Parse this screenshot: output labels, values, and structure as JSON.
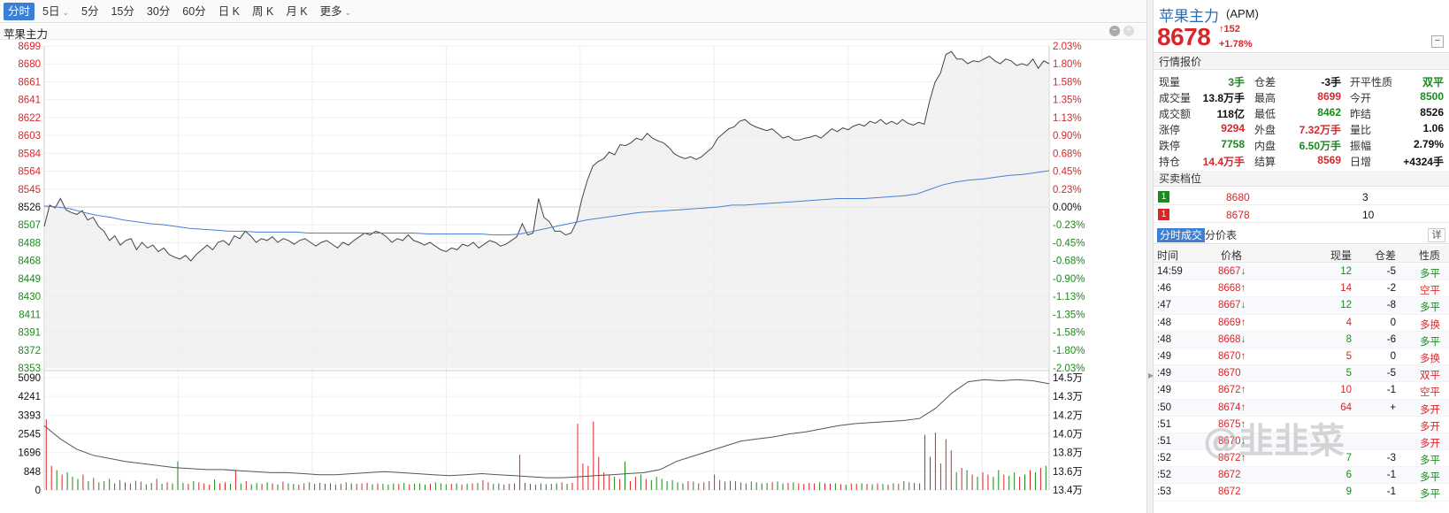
{
  "toolbar": {
    "tabs": [
      "分时",
      "5日",
      "5分",
      "15分",
      "30分",
      "60分",
      "日 K",
      "周 K",
      "月 K",
      "更多"
    ],
    "active": "分时"
  },
  "chart_title": "苹果主力",
  "colors": {
    "up": "#d8262a",
    "down": "#1a8a1a",
    "avg": "#4a7fd4",
    "price": "#444444",
    "accent": "#3d7fd6"
  },
  "chart_data": [
    {
      "type": "line",
      "title": "",
      "price_axis": {
        "ticks_up": [
          "8699",
          "8680",
          "8661",
          "8641",
          "8622",
          "8603",
          "8584",
          "8564",
          "8545"
        ],
        "base": "8526",
        "ticks_down": [
          "8507",
          "8488",
          "8468",
          "8449",
          "8430",
          "8411",
          "8391",
          "8372",
          "8353"
        ],
        "ylim": [
          8353,
          8699
        ]
      },
      "pct_axis": {
        "ticks_up": [
          "2.03%",
          "1.80%",
          "1.58%",
          "1.35%",
          "1.13%",
          "0.90%",
          "0.68%",
          "0.45%",
          "0.23%"
        ],
        "base": "0.00%",
        "ticks_down": [
          "-0.23%",
          "-0.45%",
          "-0.68%",
          "-0.90%",
          "-1.13%",
          "-1.35%",
          "-1.58%",
          "-1.80%",
          "-2.03%"
        ]
      },
      "series": [
        {
          "values": [
            8505,
            8528,
            8525,
            8535,
            8523,
            8520,
            8518,
            8522,
            8512,
            8515,
            8505,
            8500,
            8490,
            8495,
            8485,
            8490,
            8492,
            8480,
            8488,
            8482,
            8485,
            8478,
            8482,
            8475,
            8472,
            8470,
            8474,
            8468,
            8475,
            8480,
            8485,
            8480,
            8488,
            8490,
            8485,
            8495,
            8492,
            8500,
            8495,
            8488,
            8492,
            8490,
            8494,
            8488,
            8492,
            8490,
            8486,
            8490,
            8492,
            8488,
            8484,
            8488,
            8490,
            8486,
            8482,
            8488,
            8485,
            8490,
            8494,
            8498,
            8496,
            8500,
            8498,
            8494,
            8488,
            8492,
            8490,
            8496,
            8490,
            8488,
            8485,
            8488,
            8484,
            8480,
            8478,
            8482,
            8480,
            8486,
            8484,
            8488,
            8482,
            8486,
            8490,
            8488,
            8484,
            8486,
            8490,
            8494,
            8508,
            8496,
            8498,
            8535,
            8515,
            8510,
            8500,
            8500,
            8496,
            8498,
            8510,
            8535,
            8555,
            8570,
            8575,
            8578,
            8585,
            8582,
            8593,
            8592,
            8595,
            8600,
            8598,
            8605,
            8600,
            8597,
            8595,
            8590,
            8583,
            8580,
            8578,
            8580,
            8577,
            8580,
            8585,
            8590,
            8600,
            8605,
            8610,
            8612,
            8618,
            8620,
            8615,
            8612,
            8610,
            8608,
            8610,
            8605,
            8600,
            8602,
            8598,
            8598,
            8600,
            8601,
            8603,
            8600,
            8605,
            8610,
            8607,
            8611,
            8609,
            8613,
            8615,
            8613,
            8618,
            8616,
            8620,
            8615,
            8618,
            8615,
            8620,
            8616,
            8614,
            8617,
            8615,
            8640,
            8660,
            8670,
            8690,
            8693,
            8685,
            8685,
            8680,
            8683,
            8682,
            8685,
            8688,
            8683,
            8680,
            8685,
            8683,
            8678,
            8680,
            8678,
            8685,
            8675,
            8683,
            8680
          ],
          "name": ""
        },
        {
          "values": [
            8527,
            8526,
            8524,
            8520,
            8517,
            8515,
            8512,
            8510,
            8508,
            8507,
            8505,
            8503,
            8502,
            8501,
            8500,
            8500,
            8499,
            8499,
            8499,
            8499,
            8498,
            8498,
            8498,
            8498,
            8498,
            8498,
            8498,
            8498,
            8498,
            8497,
            8497,
            8497,
            8497,
            8497,
            8496,
            8496,
            8497,
            8500,
            8503,
            8506,
            8509,
            8512,
            8514,
            8516,
            8518,
            8520,
            8521,
            8522,
            8523,
            8524,
            8525,
            8526,
            8528,
            8528,
            8529,
            8530,
            8531,
            8532,
            8533,
            8534,
            8535,
            8535,
            8535,
            8536,
            8537,
            8538,
            8540,
            8545,
            8550,
            8553,
            8555,
            8556,
            8558,
            8560,
            8561,
            8563,
            8565
          ],
          "name": ""
        }
      ]
    },
    {
      "type": "bar",
      "title": "",
      "volume_axis": {
        "ticks": [
          "5090",
          "4241",
          "3393",
          "2545",
          "1696",
          "848",
          "0"
        ]
      },
      "oi_axis": {
        "ticks": [
          "14.5万",
          "14.3万",
          "14.2万",
          "14.0万",
          "13.8万",
          "13.6万",
          "13.4万"
        ]
      },
      "series": [
        {
          "name": "",
          "values": [
            3200,
            1100,
            900,
            700,
            800,
            600,
            500,
            700,
            400,
            550,
            350,
            400,
            500,
            300,
            450,
            350,
            300,
            420,
            380,
            260,
            320,
            500,
            280,
            350,
            300,
            1300,
            320,
            280,
            400,
            350,
            300,
            250,
            480,
            300,
            350,
            280,
            900,
            300,
            400,
            260,
            320,
            280,
            350,
            300,
            250,
            380,
            300,
            280,
            250,
            300,
            350,
            280,
            320,
            280,
            300,
            250,
            280,
            350,
            300,
            280,
            300,
            320,
            260,
            300,
            280,
            250,
            300,
            280,
            320,
            260,
            280,
            300,
            250,
            280,
            350,
            300,
            260,
            280,
            300,
            250,
            280,
            300,
            320,
            450,
            350,
            280,
            300,
            250,
            280,
            300,
            1600,
            320,
            280,
            250,
            300,
            260,
            280,
            300,
            350,
            280,
            320,
            3000,
            1200,
            1100,
            3100,
            1500,
            800,
            700,
            600,
            500,
            1300,
            400,
            600,
            700,
            500,
            450,
            600,
            500,
            400,
            450,
            350,
            300,
            400,
            380,
            300,
            350,
            400,
            700,
            450,
            380,
            420,
            400,
            350,
            300,
            380,
            350,
            300,
            320,
            350,
            380,
            300,
            320,
            350,
            300,
            280,
            320,
            300,
            350,
            300,
            280,
            300,
            260,
            250,
            300,
            280,
            300,
            280,
            260,
            300,
            280,
            250,
            300,
            280,
            400,
            350,
            320,
            300,
            2500,
            1500,
            2600,
            1200,
            2300,
            1800,
            800,
            1000,
            900,
            700,
            600,
            800,
            700,
            600,
            900,
            700,
            650,
            800,
            600,
            700,
            900,
            800,
            1000,
            1100
          ]
        },
        {
          "name": "",
          "values": [
            14.03,
            13.9,
            13.8,
            13.74,
            13.71,
            13.68,
            13.66,
            13.64,
            13.62,
            13.61,
            13.6,
            13.6,
            13.59,
            13.58,
            13.57,
            13.57,
            13.56,
            13.55,
            13.55,
            13.56,
            13.57,
            13.58,
            13.57,
            13.56,
            13.55,
            13.54,
            13.55,
            13.56,
            13.55,
            13.54,
            13.53,
            13.52,
            13.52,
            13.53,
            13.54,
            13.55,
            13.56,
            13.57,
            13.6,
            13.68,
            13.73,
            13.78,
            13.83,
            13.88,
            13.9,
            13.92,
            13.95,
            13.97,
            14.0,
            14.03,
            14.05,
            14.06,
            14.07,
            14.08,
            14.1,
            14.2,
            14.35,
            14.46,
            14.48,
            14.47,
            14.48,
            14.47,
            14.44
          ]
        }
      ]
    }
  ],
  "panel": {
    "name": "苹果主力",
    "code": "(APM)",
    "price": "8678",
    "change": "152",
    "change_pct": "+1.78%",
    "minimize": "−",
    "quote_title": "行情报价",
    "quote": [
      [
        {
          "l": "现量",
          "v": "3手",
          "c": "green"
        },
        {
          "l": "仓差",
          "v": "-3手",
          "c": "blk"
        },
        {
          "l": "开平性质",
          "v": "双平",
          "c": "green"
        }
      ],
      [
        {
          "l": "成交量",
          "v": "13.8万手",
          "c": "blk"
        },
        {
          "l": "最高",
          "v": "8699",
          "c": "red"
        },
        {
          "l": "今开",
          "v": "8500",
          "c": "green"
        }
      ],
      [
        {
          "l": "成交额",
          "v": "118亿",
          "c": "blk"
        },
        {
          "l": "最低",
          "v": "8462",
          "c": "green"
        },
        {
          "l": "昨结",
          "v": "8526",
          "c": "blk"
        }
      ],
      [
        {
          "l": "涨停",
          "v": "9294",
          "c": "red"
        },
        {
          "l": "外盘",
          "v": "7.32万手",
          "c": "red"
        },
        {
          "l": "量比",
          "v": "1.06",
          "c": "blk"
        }
      ],
      [
        {
          "l": "跌停",
          "v": "7758",
          "c": "green"
        },
        {
          "l": "内盘",
          "v": "6.50万手",
          "c": "green"
        },
        {
          "l": "振幅",
          "v": "2.79%",
          "c": "blk"
        }
      ],
      [
        {
          "l": "持仓",
          "v": "14.4万手",
          "c": "red"
        },
        {
          "l": "结算",
          "v": "8569",
          "c": "red"
        },
        {
          "l": "日增",
          "v": "+4324手",
          "c": "blk"
        }
      ]
    ],
    "orderbook_title": "买卖档位",
    "orderbook": [
      {
        "tag": "1",
        "price": "8680",
        "vol": "3",
        "side": "sell"
      },
      {
        "tag": "1",
        "price": "8678",
        "vol": "10",
        "side": "buy"
      }
    ],
    "trade_tab_active": "分时成交",
    "trade_tab_other": "分价表",
    "trade_detail": "详",
    "trade_cols": [
      "时间",
      "价格",
      "现量",
      "仓差",
      "性质"
    ],
    "trades": [
      {
        "t": "14:59",
        "p": "8667",
        "dir": "down",
        "v": "12",
        "d": "-5",
        "n": "多平"
      },
      {
        "t": ":46",
        "p": "8668",
        "dir": "up",
        "v": "14",
        "d": "-2",
        "n": "空平"
      },
      {
        "t": ":47",
        "p": "8667",
        "dir": "down",
        "v": "12",
        "d": "-8",
        "n": "多平"
      },
      {
        "t": ":48",
        "p": "8669",
        "dir": "up",
        "v": "4",
        "d": "0",
        "n": "多换"
      },
      {
        "t": ":48",
        "p": "8668",
        "dir": "down",
        "v": "8",
        "d": "-6",
        "n": "多平"
      },
      {
        "t": ":49",
        "p": "8670",
        "dir": "up",
        "v": "5",
        "d": "0",
        "n": "多换"
      },
      {
        "t": ":49",
        "p": "8670",
        "dir": "none",
        "v": "5",
        "d": "-5",
        "n": "双平"
      },
      {
        "t": ":49",
        "p": "8672",
        "dir": "up",
        "v": "10",
        "d": "-1",
        "n": "空平"
      },
      {
        "t": ":50",
        "p": "8674",
        "dir": "up",
        "v": "64",
        "d": "+",
        "n": "多开"
      },
      {
        "t": ":51",
        "p": "8675",
        "dir": "up",
        "v": "",
        "d": "",
        "n": "多开"
      },
      {
        "t": ":51",
        "p": "8670",
        "dir": "down",
        "v": "",
        "d": "",
        "n": "多开"
      },
      {
        "t": ":52",
        "p": "8672",
        "dir": "up",
        "v": "7",
        "d": "-3",
        "n": "多平"
      },
      {
        "t": ":52",
        "p": "8672",
        "dir": "none",
        "v": "6",
        "d": "-1",
        "n": "多平"
      },
      {
        "t": ":53",
        "p": "8672",
        "dir": "none",
        "v": "9",
        "d": "-1",
        "n": "多平"
      }
    ]
  },
  "watermark": "@韭韭菜"
}
